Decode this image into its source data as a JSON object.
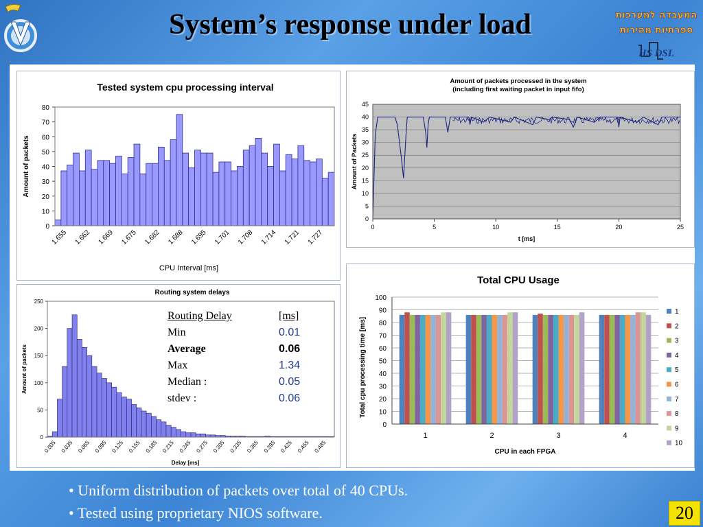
{
  "slide": {
    "title": "System’s response under load",
    "bullets": [
      "• Uniform distribution of packets over total of 40 CPUs.",
      "• Tested using proprietary NIOS software."
    ],
    "page_number": "20",
    "logo_right": {
      "line1": "המעבדה למערכות",
      "line2": "ספרתיות מהירות",
      "line3": "HS DSL"
    }
  },
  "stats_table": {
    "header": {
      "label": "Routing Delay",
      "value": "[ms]"
    },
    "rows": [
      {
        "label": "Min",
        "value": "0.01"
      },
      {
        "label": "Average",
        "value": "0.06"
      },
      {
        "label": "Max",
        "value": "1.34"
      },
      {
        "label": "Median :",
        "value": "0.05"
      },
      {
        "label": "stdev :",
        "value": "0.06"
      }
    ]
  },
  "chart_data": [
    {
      "type": "bar",
      "title": "Tested system cpu processing interval",
      "xlabel": "CPU Interval  [ms]",
      "ylabel": "Amount of packets",
      "ylim": [
        0,
        80
      ],
      "yticks": [
        0,
        10,
        20,
        30,
        40,
        50,
        60,
        70,
        80
      ],
      "xtick_labels": [
        "1.655",
        "1.662",
        "1.669",
        "1.675",
        "1.682",
        "1.688",
        "1.695",
        "1.701",
        "1.708",
        "1.714",
        "1.721",
        "1.727"
      ],
      "values": [
        4,
        37,
        41,
        49,
        37,
        51,
        38,
        44,
        44,
        42,
        47,
        35,
        46,
        55,
        35,
        42,
        42,
        53,
        44,
        58,
        75,
        49,
        39,
        51,
        49,
        49,
        36,
        43,
        43,
        37,
        40,
        51,
        54,
        59,
        49,
        40,
        55,
        37,
        48,
        45,
        54,
        44,
        43,
        45,
        32,
        36
      ],
      "grid": false
    },
    {
      "type": "line",
      "title": [
        "Amount of packets processed in the system",
        "(including first waiting packet in input fifo)"
      ],
      "xlabel": "t  [ms]",
      "ylabel": "Amount of Packets",
      "xlim": [
        0,
        25
      ],
      "ylim": [
        0,
        45
      ],
      "xticks": [
        0,
        5,
        10,
        15,
        20,
        25
      ],
      "yticks": [
        0,
        5,
        10,
        15,
        20,
        25,
        30,
        35,
        40,
        45
      ],
      "points": [
        [
          0,
          0
        ],
        [
          0.2,
          33
        ],
        [
          0.4,
          40
        ],
        [
          1.8,
          40
        ],
        [
          2,
          37
        ],
        [
          2.3,
          25
        ],
        [
          2.5,
          16
        ],
        [
          2.7,
          33
        ],
        [
          2.8,
          40
        ],
        [
          4.1,
          40
        ],
        [
          4.3,
          34
        ],
        [
          4.4,
          28
        ],
        [
          4.5,
          37
        ],
        [
          4.6,
          40
        ],
        [
          5.9,
          40
        ],
        [
          6.1,
          34
        ],
        [
          6.3,
          40
        ],
        [
          7.8,
          40
        ],
        [
          7.9,
          37
        ],
        [
          8,
          40
        ],
        [
          9,
          38
        ],
        [
          9.5,
          40
        ],
        [
          11.2,
          38
        ],
        [
          11.5,
          40
        ],
        [
          13,
          37
        ],
        [
          13.3,
          40
        ],
        [
          14.3,
          39
        ],
        [
          14.6,
          40
        ],
        [
          16,
          39
        ],
        [
          16.3,
          36
        ],
        [
          16.6,
          40
        ],
        [
          18,
          38
        ],
        [
          18.5,
          40
        ],
        [
          19.9,
          40
        ],
        [
          20,
          36
        ],
        [
          20.1,
          40
        ],
        [
          21.5,
          38
        ],
        [
          22,
          40
        ],
        [
          23.2,
          37
        ],
        [
          23.5,
          40
        ],
        [
          25,
          40
        ]
      ],
      "grid": true
    },
    {
      "type": "bar",
      "title": "Routing system delays",
      "xlabel": "Delay  [ms]",
      "ylabel": "Amount of packets",
      "ylim": [
        0,
        250
      ],
      "yticks": [
        0,
        50,
        100,
        150,
        200,
        250
      ],
      "xtick_labels": [
        "0.005",
        "0.035",
        "0.065",
        "0.095",
        "0.125",
        "0.155",
        "0.185",
        "0.215",
        "0.245",
        "0.275",
        "0.305",
        "0.335",
        "0.365",
        "0.395",
        "0.425",
        "0.455",
        "0.485"
      ],
      "values": [
        2,
        10,
        70,
        130,
        200,
        225,
        180,
        165,
        150,
        130,
        118,
        108,
        100,
        92,
        82,
        74,
        70,
        60,
        54,
        48,
        44,
        38,
        32,
        28,
        22,
        18,
        14,
        10,
        8,
        8,
        6,
        6,
        4,
        4,
        3,
        3,
        2,
        2,
        2,
        2,
        1,
        1,
        1,
        1,
        2,
        1,
        1,
        1,
        1,
        1,
        1,
        1,
        1,
        1,
        1,
        1,
        1,
        1
      ],
      "grid": false
    },
    {
      "type": "bar",
      "title": "Total CPU Usage",
      "xlabel": "CPU in each FPGA",
      "ylabel": "Total cpu processing time  [ms]",
      "ylim": [
        0,
        100
      ],
      "yticks": [
        0,
        10,
        20,
        30,
        40,
        50,
        60,
        70,
        80,
        90,
        100
      ],
      "categories": [
        "1",
        "2",
        "3",
        "4"
      ],
      "series": [
        {
          "name": "1",
          "color": "#4f81bd",
          "values": [
            86,
            86,
            86,
            86
          ]
        },
        {
          "name": "2",
          "color": "#c0504d",
          "values": [
            88,
            86,
            87,
            86
          ]
        },
        {
          "name": "3",
          "color": "#9bbb59",
          "values": [
            86,
            86,
            86,
            86
          ]
        },
        {
          "name": "4",
          "color": "#8064a2",
          "values": [
            86,
            86,
            86,
            86
          ]
        },
        {
          "name": "5",
          "color": "#4bacc6",
          "values": [
            86,
            86,
            86,
            86
          ]
        },
        {
          "name": "6",
          "color": "#f79646",
          "values": [
            86,
            86,
            86,
            86
          ]
        },
        {
          "name": "7",
          "color": "#95b3d7",
          "values": [
            86,
            86,
            86,
            86
          ]
        },
        {
          "name": "8",
          "color": "#d99694",
          "values": [
            86,
            86,
            86,
            88
          ]
        },
        {
          "name": "9",
          "color": "#c3d69b",
          "values": [
            88,
            88,
            86,
            88
          ]
        },
        {
          "name": "10",
          "color": "#b2a2c7",
          "values": [
            88,
            88,
            88,
            86
          ]
        }
      ],
      "grid": true,
      "legend": "right"
    }
  ]
}
